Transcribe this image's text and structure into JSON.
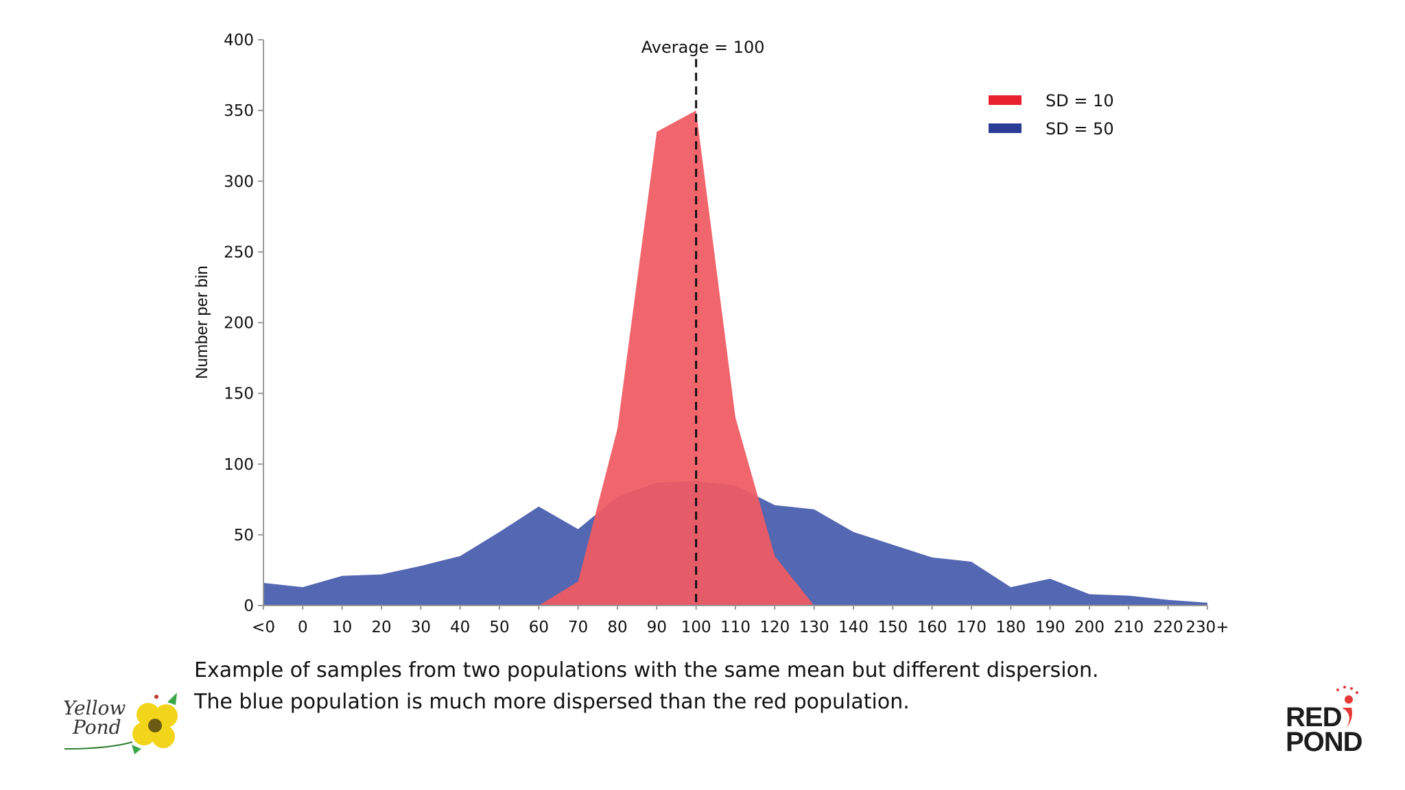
{
  "chart_data": {
    "type": "area",
    "title": "",
    "xlabel": "",
    "ylabel": "Number per bin",
    "categories": [
      "<0",
      "0",
      "10",
      "20",
      "30",
      "40",
      "50",
      "60",
      "70",
      "80",
      "90",
      "100",
      "110",
      "120",
      "130",
      "140",
      "150",
      "160",
      "170",
      "180",
      "190",
      "200",
      "210",
      "220",
      "230+"
    ],
    "yticks": [
      0,
      50,
      100,
      150,
      200,
      250,
      300,
      350,
      400
    ],
    "ylim": [
      0,
      400
    ],
    "grid": false,
    "legend_position": "top-right",
    "series": [
      {
        "name": "SD = 10",
        "color": "#f05a62",
        "opacity": 0.93,
        "values": [
          0,
          0,
          0,
          0,
          0,
          0,
          0,
          0,
          17,
          125,
          335,
          350,
          133,
          35,
          0,
          0,
          0,
          0,
          0,
          0,
          0,
          0,
          0,
          0,
          0
        ]
      },
      {
        "name": "SD = 50",
        "color": "#4a5fae",
        "opacity": 0.95,
        "values": [
          16,
          13,
          21,
          22,
          28,
          35,
          52,
          70,
          54,
          77,
          87,
          88,
          85,
          71,
          68,
          52,
          43,
          34,
          31,
          13,
          19,
          8,
          7,
          4,
          2
        ]
      }
    ],
    "annotations": [
      {
        "type": "vline",
        "x": "100",
        "style": "dashed",
        "label": "Average = 100"
      }
    ]
  },
  "caption": {
    "line1": "Example of samples from two populations with the same mean but different dispersion.",
    "line2": "The blue population is much more dispersed than the red population."
  },
  "logos": {
    "left": {
      "line1": "Yellow",
      "line2": "Pond",
      "icon": "yellow-flower-icon"
    },
    "right": {
      "line1": "RED",
      "line2": "POND",
      "icon": "red-figure-icon"
    }
  }
}
